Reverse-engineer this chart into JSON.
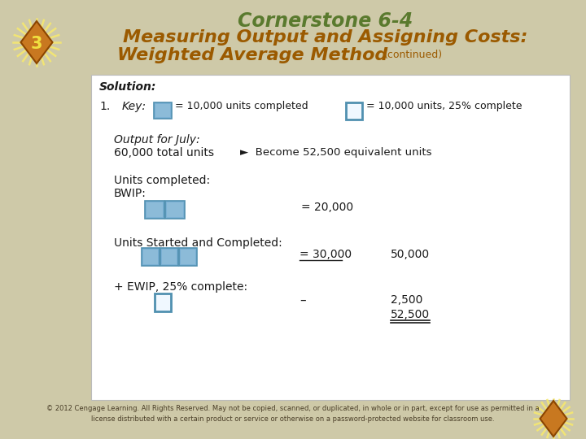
{
  "bg_color": "#cec9a8",
  "box_bg": "#ffffff",
  "title_line1": "Cornerstone 6-4",
  "title_line2": "Measuring Output and Assigning Costs:",
  "title_line3": "Weighted Average Method",
  "title_continued": "(continued)",
  "title_color_green": "#5a7a2e",
  "title_color_orange": "#9b5a00",
  "solution_label": "Solution:",
  "item1_label": "1.",
  "key_label": "Key:",
  "key_text1": "= 10,000 units completed",
  "key_text2": "= 10,000 units, 25% complete",
  "output_label": "Output for July:",
  "output_line": "60,000 total units",
  "arrow_text": "►  Become 52,500 equivalent units",
  "units_completed_label": "Units completed:",
  "bwip_label": "BWIP:",
  "bwip_value": "= 20,000",
  "units_sc_label": "Units Started and Completed:",
  "units_sc_value1": "= 30,000",
  "units_sc_value2": "50,000",
  "ewip_label": "+ EWIP, 25% complete:",
  "ewip_dash": "–",
  "ewip_value1": "2,500",
  "total_value": "52,500",
  "box_filled_color": "#7ab0d4",
  "box_outline_color": "#5090b0",
  "box_filled_inner": "#a8cce0",
  "copyright_text": "© 2012 Cengage Learning. All Rights Reserved. May not be copied, scanned, or duplicated, in whole or in part, except for use as permitted in a\nlicense distributed with a certain product or service or otherwise on a password-protected website for classroom use.",
  "copyright_color": "#4a3e28",
  "star_color": "#f5e870",
  "diamond_face": "#c87820",
  "diamond_edge": "#8b4500",
  "num_color": "#f0e040",
  "text_color": "#1a1a1a"
}
